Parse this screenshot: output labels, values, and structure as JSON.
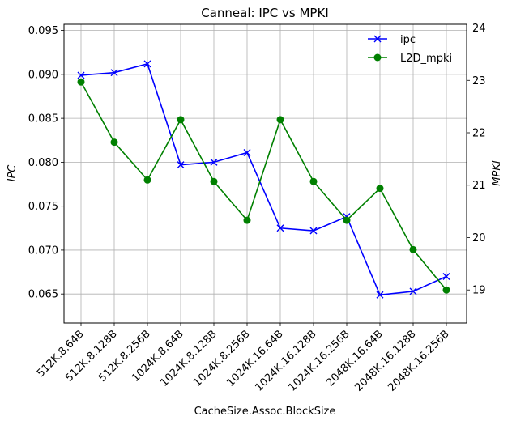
{
  "chart_data": {
    "type": "line",
    "title": "Canneal: IPC vs MPKI",
    "xlabel": "CacheSize.Assoc.BlockSize",
    "ylabel_left": "IPC",
    "ylabel_right": "MPKI",
    "categories": [
      "512K.8.64B",
      "512K.8.128B",
      "512K.8.256B",
      "1024K.8.64B",
      "1024K.8.128B",
      "1024K.8.256B",
      "1024K.16.64B",
      "1024K.16.128B",
      "1024K.16.256B",
      "2048K.16.64B",
      "2048K.16.128B",
      "2048K.16.256B"
    ],
    "series": [
      {
        "name": "ipc",
        "axis": "left",
        "color": "#0000ff",
        "marker": "x",
        "values": [
          0.0899,
          0.0902,
          0.0912,
          0.0797,
          0.08,
          0.0811,
          0.0725,
          0.0722,
          0.0738,
          0.0649,
          0.0653,
          0.067
        ]
      },
      {
        "name": "L2D_mpki",
        "axis": "right",
        "color": "#008000",
        "marker": "circle",
        "values": [
          22.97,
          21.82,
          21.1,
          22.25,
          21.07,
          20.33,
          22.25,
          21.07,
          20.33,
          20.94,
          19.77,
          19.0
        ]
      }
    ],
    "ylim_left": [
      0.0617,
      0.0957
    ],
    "ylim_right": [
      18.37,
      24.07
    ],
    "yticks_left": [
      "0.065",
      "0.070",
      "0.075",
      "0.080",
      "0.085",
      "0.090",
      "0.095"
    ],
    "yticks_right": [
      "19",
      "20",
      "21",
      "22",
      "23",
      "24"
    ],
    "grid": true,
    "legend_position": "top-right"
  }
}
